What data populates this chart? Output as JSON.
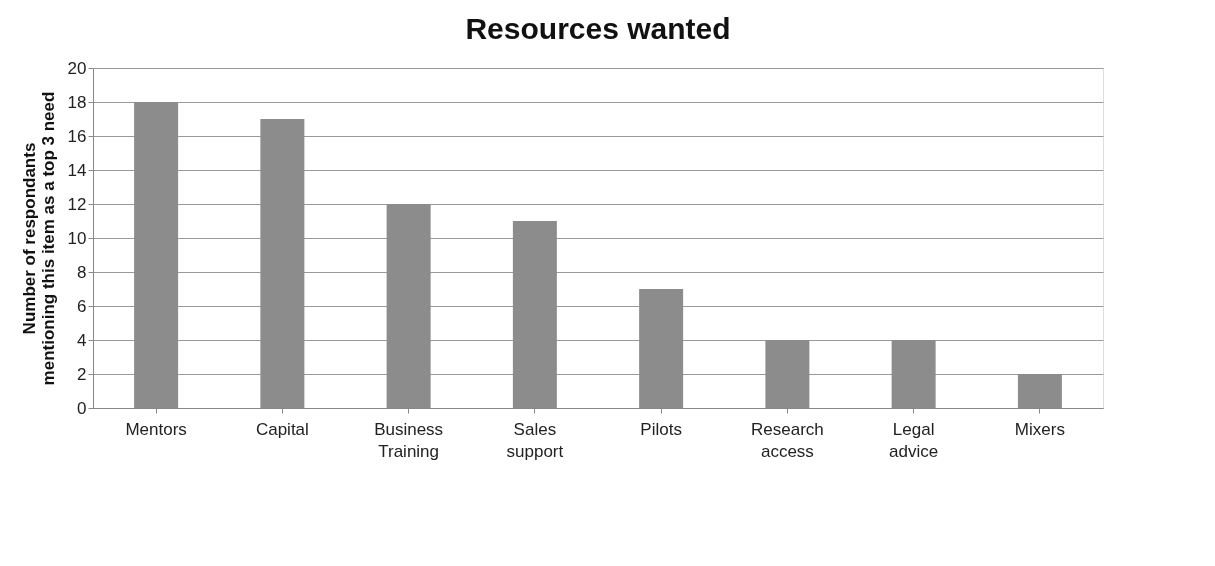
{
  "chart_data": {
    "type": "bar",
    "title": "Resources wanted",
    "ylabel": "Number of respondants\nmentioning this item as a top 3 need",
    "categories": [
      "Mentors",
      "Capital",
      "Business Training",
      "Sales support",
      "Pilots",
      "Research access",
      "Legal advice",
      "Mixers"
    ],
    "values": [
      18,
      17,
      12,
      11,
      7,
      4,
      4,
      2
    ],
    "color": "#8c8c8c",
    "ylim": [
      0,
      20
    ],
    "yticks": [
      0,
      2,
      4,
      6,
      8,
      10,
      12,
      14,
      16,
      18,
      20
    ],
    "grid": "y"
  }
}
